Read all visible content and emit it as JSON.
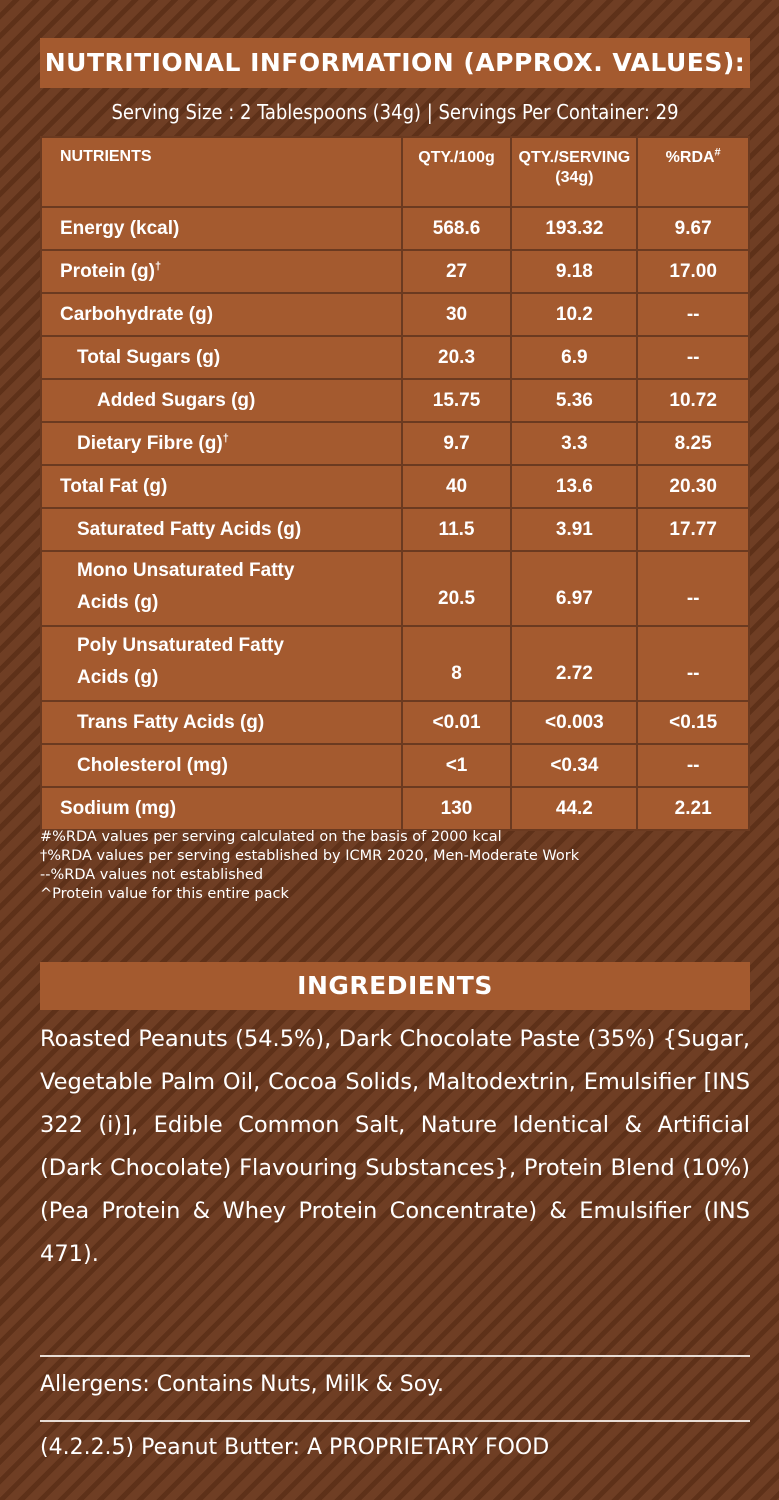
{
  "nutrition": {
    "title": "NUTRITIONAL INFORMATION (APPROX. VALUES):",
    "serving_line": "Serving Size : 2 Tablespoons (34g)  |  Servings Per Container: 29",
    "headers": {
      "nutrients": "NUTRIENTS",
      "qty_100g": "QTY./100g",
      "qty_serving": "QTY./SERVING",
      "qty_serving_sub": "(34g)",
      "rda": "%RDA",
      "rda_mark": "#"
    },
    "rows": [
      {
        "name": "Energy (kcal)",
        "mark": "",
        "per100": "568.6",
        "serving": "193.32",
        "rda": "9.67"
      },
      {
        "name": "Protein (g)",
        "mark": "†",
        "per100": "27",
        "serving": "9.18",
        "rda": "17.00"
      },
      {
        "name": "Carbohydrate (g)",
        "mark": "",
        "per100": "30",
        "serving": "10.2",
        "rda": "--"
      },
      {
        "name": "Total Sugars (g)",
        "mark": "",
        "per100": "20.3",
        "serving": "6.9",
        "rda": "--"
      },
      {
        "name": "Added Sugars (g)",
        "mark": "",
        "per100": "15.75",
        "serving": "5.36",
        "rda": "10.72"
      },
      {
        "name": "Dietary Fibre (g)",
        "mark": "†",
        "per100": "9.7",
        "serving": "3.3",
        "rda": "8.25"
      },
      {
        "name": "Total Fat (g)",
        "mark": "",
        "per100": "40",
        "serving": "13.6",
        "rda": "20.30"
      },
      {
        "name": "Saturated Fatty Acids (g)",
        "mark": "",
        "per100": "11.5",
        "serving": "3.91",
        "rda": "17.77"
      },
      {
        "name_line1": "Mono Unsaturated Fatty",
        "name_line2": "Acids (g)",
        "per100": "20.5",
        "serving": "6.97",
        "rda": "--"
      },
      {
        "name_line1": "Poly Unsaturated Fatty",
        "name_line2": "Acids (g)",
        "per100": "8",
        "serving": "2.72",
        "rda": "--"
      },
      {
        "name": "Trans Fatty Acids (g)",
        "mark": "",
        "per100": "<0.01",
        "serving": "<0.003",
        "rda": "<0.15"
      },
      {
        "name": "Cholesterol (mg)",
        "mark": "",
        "per100": "<1",
        "serving": "<0.34",
        "rda": "--"
      },
      {
        "name": "Sodium (mg)",
        "mark": "",
        "per100": "130",
        "serving": "44.2",
        "rda": "2.21"
      }
    ],
    "notes": [
      "#%RDA values per serving calculated on the basis of 2000 kcal",
      "†%RDA values per serving established by ICMR 2020, Men-Moderate Work",
      "--%RDA values not established",
      "^Protein value for this entire pack"
    ]
  },
  "ingredients": {
    "title": "INGREDIENTS",
    "text": "Roasted Peanuts (54.5%), Dark Chocolate Paste (35%) {Sugar, Vegetable Palm Oil, Cocoa Solids, Maltodextrin, Emulsifier [INS 322 (i)], Edible Common Salt, Nature Identical & Artificial (Dark Chocolate) Flavouring Substances}, Protein Blend (10%) (Pea Protein & Whey Protein Concentrate) & Emulsifier (INS 471)."
  },
  "allergens": "Allergens: Contains Nuts, Milk & Soy.",
  "category": "(4.2.2.5) Peanut Butter: A PROPRIETARY FOOD",
  "colors": {
    "background": "#6a3a21",
    "stripe": "#5e3119",
    "panel": "#a45a2f",
    "text": "#ffffff"
  }
}
